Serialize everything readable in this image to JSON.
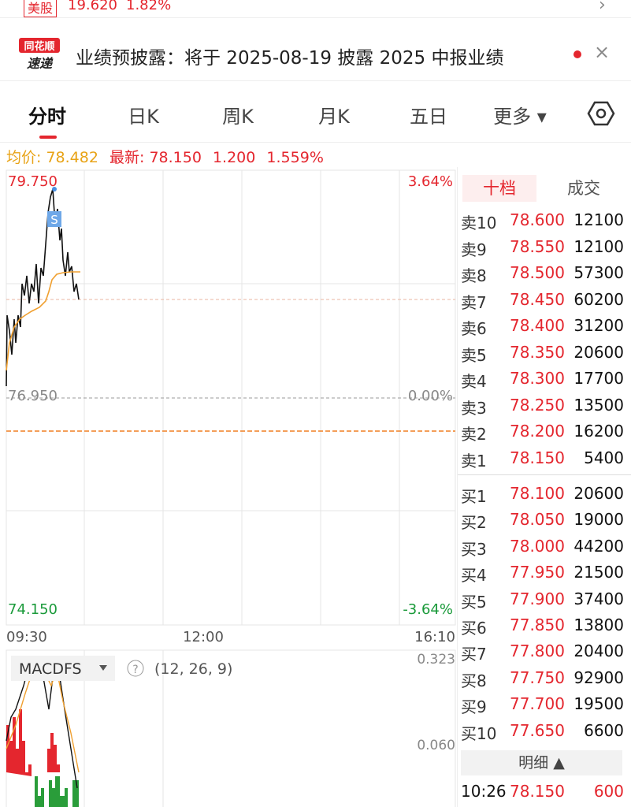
{
  "top_bar": {
    "market": "美股",
    "price": "19.620",
    "change": "1.82%"
  },
  "notice": {
    "logo_top": "同花顺",
    "logo_bottom": "速递",
    "text": "业绩预披露：将于 2025-08-19 披露 2025 中报业绩"
  },
  "tabs": [
    "分时",
    "日K",
    "周K",
    "月K",
    "五日",
    "更多"
  ],
  "summary": {
    "avg_label": "均价:",
    "avg": "78.482",
    "latest_label": "最新:",
    "latest": "78.150",
    "change": "1.200",
    "change_pct": "1.559%"
  },
  "chart": {
    "price_high": "79.750",
    "pct_high": "3.64%",
    "price_mid": "76.950",
    "pct_mid": "0.00%",
    "price_low": "74.150",
    "pct_low": "-3.64%",
    "times": [
      "09:30",
      "12:00",
      "16:10"
    ],
    "marker": "S"
  },
  "macd": {
    "name": "MACDFS",
    "help": "?",
    "params": "(12, 26, 9)",
    "top": "0.323",
    "mid": "0.060"
  },
  "order_book": {
    "tabs": [
      "十档",
      "成交"
    ],
    "asks": [
      [
        "卖10",
        "78.600",
        "12100"
      ],
      [
        "卖9",
        "78.550",
        "12100"
      ],
      [
        "卖8",
        "78.500",
        "57300"
      ],
      [
        "卖7",
        "78.450",
        "60200"
      ],
      [
        "卖6",
        "78.400",
        "31200"
      ],
      [
        "卖5",
        "78.350",
        "20600"
      ],
      [
        "卖4",
        "78.300",
        "17700"
      ],
      [
        "卖3",
        "78.250",
        "13500"
      ],
      [
        "卖2",
        "78.200",
        "16200"
      ],
      [
        "卖1",
        "78.150",
        "5400"
      ]
    ],
    "bids": [
      [
        "买1",
        "78.100",
        "20600"
      ],
      [
        "买2",
        "78.050",
        "19000"
      ],
      [
        "买3",
        "78.000",
        "44200"
      ],
      [
        "买4",
        "77.950",
        "21500"
      ],
      [
        "买5",
        "77.900",
        "37400"
      ],
      [
        "买6",
        "77.850",
        "13800"
      ],
      [
        "买7",
        "77.800",
        "20400"
      ],
      [
        "买8",
        "77.750",
        "92900"
      ],
      [
        "买9",
        "77.700",
        "19500"
      ],
      [
        "买10",
        "77.650",
        "6600"
      ]
    ]
  },
  "trades": {
    "label": "明细",
    "rows": [
      [
        "10:26",
        "78.150",
        "600"
      ]
    ]
  }
}
